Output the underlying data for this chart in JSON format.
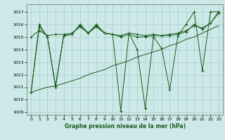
{
  "title": "Graphe pression niveau de la mer (hPa)",
  "bg_color": "#cce8e8",
  "grid_color": "#aacccc",
  "line_color": "#1a5c1a",
  "xlim": [
    -0.5,
    23.5
  ],
  "ylim": [
    1008.8,
    1017.6
  ],
  "yticks": [
    1009,
    1010,
    1011,
    1012,
    1013,
    1014,
    1015,
    1016,
    1017
  ],
  "xticks": [
    0,
    1,
    2,
    3,
    4,
    5,
    6,
    7,
    8,
    9,
    10,
    11,
    12,
    13,
    14,
    15,
    16,
    17,
    18,
    19,
    20,
    21,
    22,
    23
  ],
  "series": [
    {
      "x": [
        0,
        1,
        2,
        3,
        4,
        5,
        6,
        7,
        8,
        9,
        10,
        11,
        12,
        13,
        14,
        15,
        16,
        17,
        18,
        19,
        20,
        21,
        22,
        23
      ],
      "y": [
        1010.6,
        1016.0,
        1015.0,
        1011.0,
        1015.1,
        1015.2,
        1016.0,
        1015.3,
        1016.0,
        1015.3,
        1015.2,
        1009.1,
        1015.3,
        1014.0,
        1009.3,
        1015.0,
        1014.1,
        1010.8,
        1015.1,
        1016.0,
        1017.0,
        1012.3,
        1017.0,
        1017.0
      ]
    },
    {
      "x": [
        0,
        1,
        2,
        3,
        4,
        5,
        6,
        7,
        8,
        9,
        10,
        11,
        12,
        13,
        14,
        15,
        16,
        17,
        18,
        19,
        20,
        21,
        22,
        23
      ],
      "y": [
        1010.6,
        1015.8,
        1015.0,
        1011.1,
        1015.1,
        1015.2,
        1015.9,
        1015.3,
        1015.9,
        1015.3,
        1015.2,
        1015.0,
        1015.2,
        1015.0,
        1015.0,
        1015.1,
        1015.1,
        1015.1,
        1015.2,
        1015.4,
        1016.0,
        1015.6,
        1016.1,
        1017.0
      ]
    },
    {
      "x": [
        0,
        1,
        2,
        3,
        4,
        5,
        6,
        7,
        8,
        9,
        10,
        11,
        12,
        13,
        14,
        15,
        16,
        17,
        18,
        19,
        20,
        21,
        22,
        23
      ],
      "y": [
        1015.0,
        1015.5,
        1015.1,
        1015.2,
        1015.2,
        1015.3,
        1015.8,
        1015.3,
        1015.8,
        1015.3,
        1015.2,
        1015.1,
        1015.3,
        1015.2,
        1015.1,
        1015.2,
        1015.1,
        1015.2,
        1015.3,
        1015.5,
        1015.9,
        1015.7,
        1016.1,
        1016.9
      ]
    },
    {
      "x": [
        0,
        1,
        2,
        3,
        4,
        5,
        6,
        7,
        8,
        9,
        10,
        11,
        12,
        13,
        14,
        15,
        16,
        17,
        18,
        19,
        20,
        21,
        22,
        23
      ],
      "y": [
        1010.6,
        1010.8,
        1011.0,
        1011.1,
        1011.3,
        1011.5,
        1011.7,
        1012.0,
        1012.2,
        1012.4,
        1012.7,
        1012.9,
        1013.1,
        1013.4,
        1013.6,
        1013.8,
        1014.0,
        1014.3,
        1014.5,
        1014.8,
        1015.0,
        1015.3,
        1015.6,
        1015.9
      ]
    }
  ]
}
